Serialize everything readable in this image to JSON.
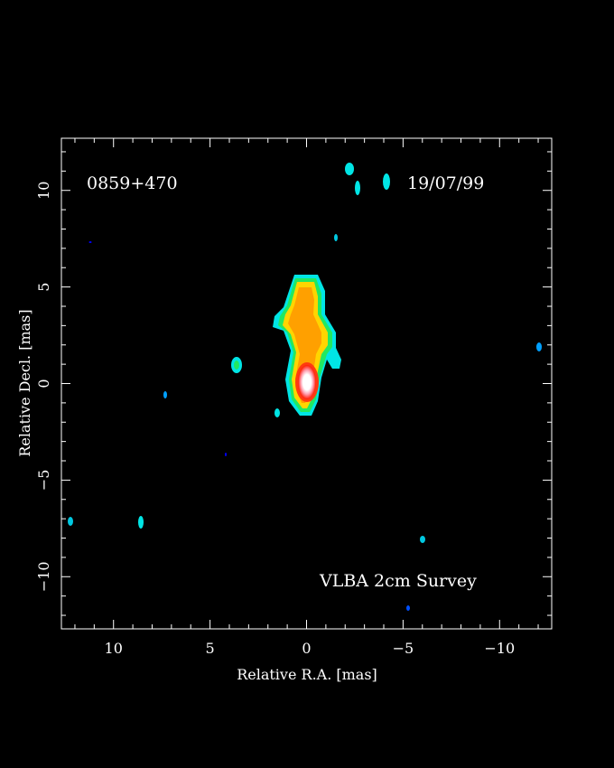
{
  "chart_data": {
    "type": "heatmap",
    "source_label": "0859+470",
    "date_label": "19/07/99",
    "survey_label": "VLBA 2cm Survey",
    "xlabel": "Relative R.A. [mas]",
    "ylabel": "Relative Decl. [mas]",
    "xlim": [
      12.7,
      -12.7
    ],
    "ylim": [
      -12.7,
      12.7
    ],
    "x_ticks": [
      10,
      5,
      0,
      -5,
      -10
    ],
    "x_tick_labels": [
      "10",
      "5",
      "0",
      "−5",
      "−10"
    ],
    "y_ticks": [
      10,
      5,
      0,
      -5,
      -10
    ],
    "y_tick_labels": [
      "10",
      "5",
      "0",
      "−5",
      "−10"
    ],
    "background_color": "#000000",
    "frame_color": "#ffffff",
    "colormap": [
      "#0000ff",
      "#00e5e5",
      "#22e860",
      "#ffb000",
      "#ff7a00",
      "#ff1a00",
      "#ffffff"
    ],
    "jet": {
      "main_components": [
        {
          "x": -0.05,
          "y": 3.8,
          "level": 3
        },
        {
          "x": -0.6,
          "y": 1.9,
          "level": 3
        },
        {
          "x": 0.0,
          "y": 0.0,
          "level": 6
        }
      ]
    },
    "noise_blobs": [
      {
        "x": 3.6,
        "y": 0.9,
        "level": 2
      },
      {
        "x": 1.6,
        "y": -1.6,
        "level": 1
      },
      {
        "x": -2.2,
        "y": 11.3,
        "level": 1
      },
      {
        "x": -2.7,
        "y": 10.2,
        "level": 1
      },
      {
        "x": -4.2,
        "y": 10.5,
        "level": 1
      },
      {
        "x": -1.5,
        "y": 7.5,
        "level": 1
      },
      {
        "x": -12.0,
        "y": 1.8,
        "level": 1
      },
      {
        "x": 7.3,
        "y": -0.7,
        "level": 1
      },
      {
        "x": 4.2,
        "y": -3.8,
        "level": 0
      },
      {
        "x": 11.2,
        "y": 7.3,
        "level": 0
      },
      {
        "x": 12.4,
        "y": -7.2,
        "level": 1
      },
      {
        "x": 8.5,
        "y": -7.3,
        "level": 1
      },
      {
        "x": -6.0,
        "y": -8.1,
        "level": 1
      },
      {
        "x": -5.3,
        "y": -11.7,
        "level": 0
      }
    ]
  }
}
